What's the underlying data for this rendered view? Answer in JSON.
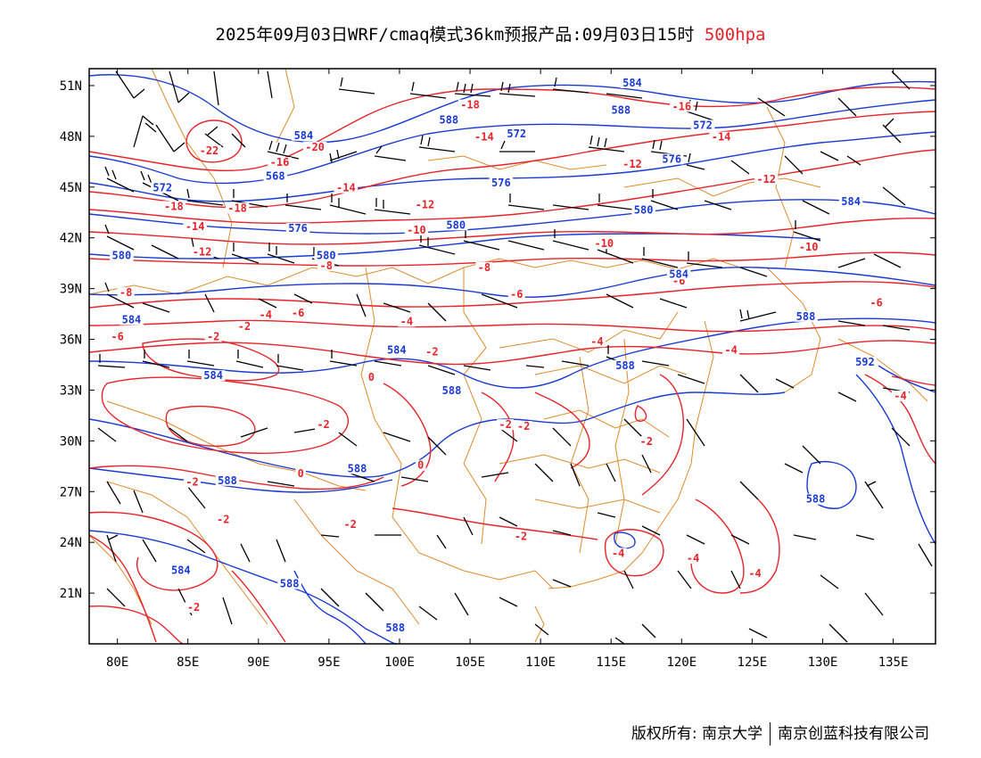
{
  "title": {
    "main": "2025年09月03日WRF/cmaq模式36km预报产品:09月03日15时",
    "level": "500hpa"
  },
  "map": {
    "lon_ticks": [
      "80E",
      "85E",
      "90E",
      "95E",
      "100E",
      "105E",
      "110E",
      "115E",
      "120E",
      "125E",
      "130E",
      "135E"
    ],
    "lat_ticks": [
      "51N",
      "48N",
      "45N",
      "42N",
      "39N",
      "36N",
      "33N",
      "30N",
      "27N",
      "24N",
      "21N"
    ],
    "lon_range": [
      78,
      138
    ],
    "lat_range": [
      18,
      52
    ],
    "colors": {
      "temperature_contours": "#e8232a",
      "height_contours": "#1a3ad6",
      "boundaries": "#e08a2a",
      "wind_barbs": "#000000"
    },
    "temperature_labels": [
      {
        "text": "-22",
        "lon": 86.5,
        "lat": 47.0
      },
      {
        "text": "-20",
        "lon": 94.0,
        "lat": 47.2
      },
      {
        "text": "-18",
        "lon": 84.0,
        "lat": 43.7
      },
      {
        "text": "-18",
        "lon": 88.5,
        "lat": 43.6
      },
      {
        "text": "-18",
        "lon": 105.0,
        "lat": 49.7
      },
      {
        "text": "-16",
        "lon": 120.0,
        "lat": 49.6
      },
      {
        "text": "-16",
        "lon": 91.5,
        "lat": 46.3
      },
      {
        "text": "-14",
        "lon": 96.2,
        "lat": 44.8
      },
      {
        "text": "-14",
        "lon": 85.5,
        "lat": 42.5
      },
      {
        "text": "-14",
        "lon": 106.0,
        "lat": 47.8
      },
      {
        "text": "-14",
        "lon": 122.8,
        "lat": 47.8
      },
      {
        "text": "-12",
        "lon": 86.0,
        "lat": 41.0
      },
      {
        "text": "-12",
        "lon": 101.8,
        "lat": 43.8
      },
      {
        "text": "-12",
        "lon": 116.5,
        "lat": 46.2
      },
      {
        "text": "-12",
        "lon": 126.0,
        "lat": 45.3
      },
      {
        "text": "-10",
        "lon": 101.2,
        "lat": 42.3
      },
      {
        "text": "-10",
        "lon": 114.5,
        "lat": 41.5
      },
      {
        "text": "-10",
        "lon": 129.0,
        "lat": 41.3
      },
      {
        "text": "-8",
        "lon": 80.6,
        "lat": 38.6
      },
      {
        "text": "-8",
        "lon": 94.8,
        "lat": 40.2
      },
      {
        "text": "-8",
        "lon": 106.0,
        "lat": 40.1
      },
      {
        "text": "-6",
        "lon": 92.8,
        "lat": 37.4
      },
      {
        "text": "-6",
        "lon": 80.0,
        "lat": 36.0
      },
      {
        "text": "-6",
        "lon": 108.3,
        "lat": 38.5
      },
      {
        "text": "-6",
        "lon": 119.8,
        "lat": 39.3
      },
      {
        "text": "-6",
        "lon": 133.8,
        "lat": 38.0
      },
      {
        "text": "-4",
        "lon": 90.5,
        "lat": 37.3
      },
      {
        "text": "-4",
        "lon": 100.5,
        "lat": 36.9
      },
      {
        "text": "-4",
        "lon": 114.0,
        "lat": 35.7
      },
      {
        "text": "-4",
        "lon": 123.5,
        "lat": 35.2
      },
      {
        "text": "-4",
        "lon": 135.5,
        "lat": 32.5
      },
      {
        "text": "-4",
        "lon": 125.2,
        "lat": 22.0
      },
      {
        "text": "-4",
        "lon": 115.5,
        "lat": 23.2
      },
      {
        "text": "-4",
        "lon": 120.8,
        "lat": 22.9
      },
      {
        "text": "-2",
        "lon": 86.8,
        "lat": 36.0
      },
      {
        "text": "-2",
        "lon": 89.0,
        "lat": 36.6
      },
      {
        "text": "-2",
        "lon": 102.3,
        "lat": 35.1
      },
      {
        "text": "-2",
        "lon": 94.6,
        "lat": 30.8
      },
      {
        "text": "-2",
        "lon": 107.5,
        "lat": 30.8
      },
      {
        "text": "-2",
        "lon": 108.8,
        "lat": 30.7
      },
      {
        "text": "-2",
        "lon": 117.5,
        "lat": 29.8
      },
      {
        "text": "-2",
        "lon": 85.3,
        "lat": 27.4
      },
      {
        "text": "-2",
        "lon": 87.5,
        "lat": 25.2
      },
      {
        "text": "-2",
        "lon": 96.5,
        "lat": 24.9
      },
      {
        "text": "-2",
        "lon": 108.6,
        "lat": 24.2
      },
      {
        "text": "-2",
        "lon": 85.4,
        "lat": 20.0
      },
      {
        "text": "0",
        "lon": 93.0,
        "lat": 27.9
      },
      {
        "text": "0",
        "lon": 98.0,
        "lat": 33.6
      },
      {
        "text": "0",
        "lon": 101.5,
        "lat": 28.4
      }
    ],
    "height_labels": [
      {
        "text": "584",
        "lon": 93.2,
        "lat": 47.9
      },
      {
        "text": "584",
        "lon": 116.5,
        "lat": 51.0
      },
      {
        "text": "588",
        "lon": 103.5,
        "lat": 48.8
      },
      {
        "text": "588",
        "lon": 115.7,
        "lat": 49.4
      },
      {
        "text": "572",
        "lon": 108.3,
        "lat": 48.0
      },
      {
        "text": "572",
        "lon": 121.5,
        "lat": 48.5
      },
      {
        "text": "576",
        "lon": 119.3,
        "lat": 46.5
      },
      {
        "text": "568",
        "lon": 91.2,
        "lat": 45.5
      },
      {
        "text": "572",
        "lon": 83.2,
        "lat": 44.8
      },
      {
        "text": "576",
        "lon": 107.2,
        "lat": 45.1
      },
      {
        "text": "580",
        "lon": 117.3,
        "lat": 43.5
      },
      {
        "text": "584",
        "lon": 132.0,
        "lat": 44.0
      },
      {
        "text": "576",
        "lon": 92.8,
        "lat": 42.4
      },
      {
        "text": "580",
        "lon": 104.0,
        "lat": 42.6
      },
      {
        "text": "580",
        "lon": 80.3,
        "lat": 40.8
      },
      {
        "text": "580",
        "lon": 94.8,
        "lat": 40.8
      },
      {
        "text": "584",
        "lon": 119.8,
        "lat": 39.7
      },
      {
        "text": "584",
        "lon": 81.0,
        "lat": 37.0
      },
      {
        "text": "588",
        "lon": 128.8,
        "lat": 37.2
      },
      {
        "text": "584",
        "lon": 99.8,
        "lat": 35.2
      },
      {
        "text": "588",
        "lon": 116.0,
        "lat": 34.3
      },
      {
        "text": "592",
        "lon": 133.0,
        "lat": 34.5
      },
      {
        "text": "584",
        "lon": 86.8,
        "lat": 33.7
      },
      {
        "text": "588",
        "lon": 103.7,
        "lat": 32.8
      },
      {
        "text": "588",
        "lon": 97.0,
        "lat": 28.2
      },
      {
        "text": "588",
        "lon": 87.8,
        "lat": 27.5
      },
      {
        "text": "588",
        "lon": 129.5,
        "lat": 26.4
      },
      {
        "text": "584",
        "lon": 84.5,
        "lat": 22.2
      },
      {
        "text": "588",
        "lon": 92.2,
        "lat": 21.4
      },
      {
        "text": "588",
        "lon": 99.7,
        "lat": 18.8
      }
    ]
  },
  "footer": {
    "left": "版权所有: 南京大学",
    "right": "南京创蓝科技有限公司"
  }
}
